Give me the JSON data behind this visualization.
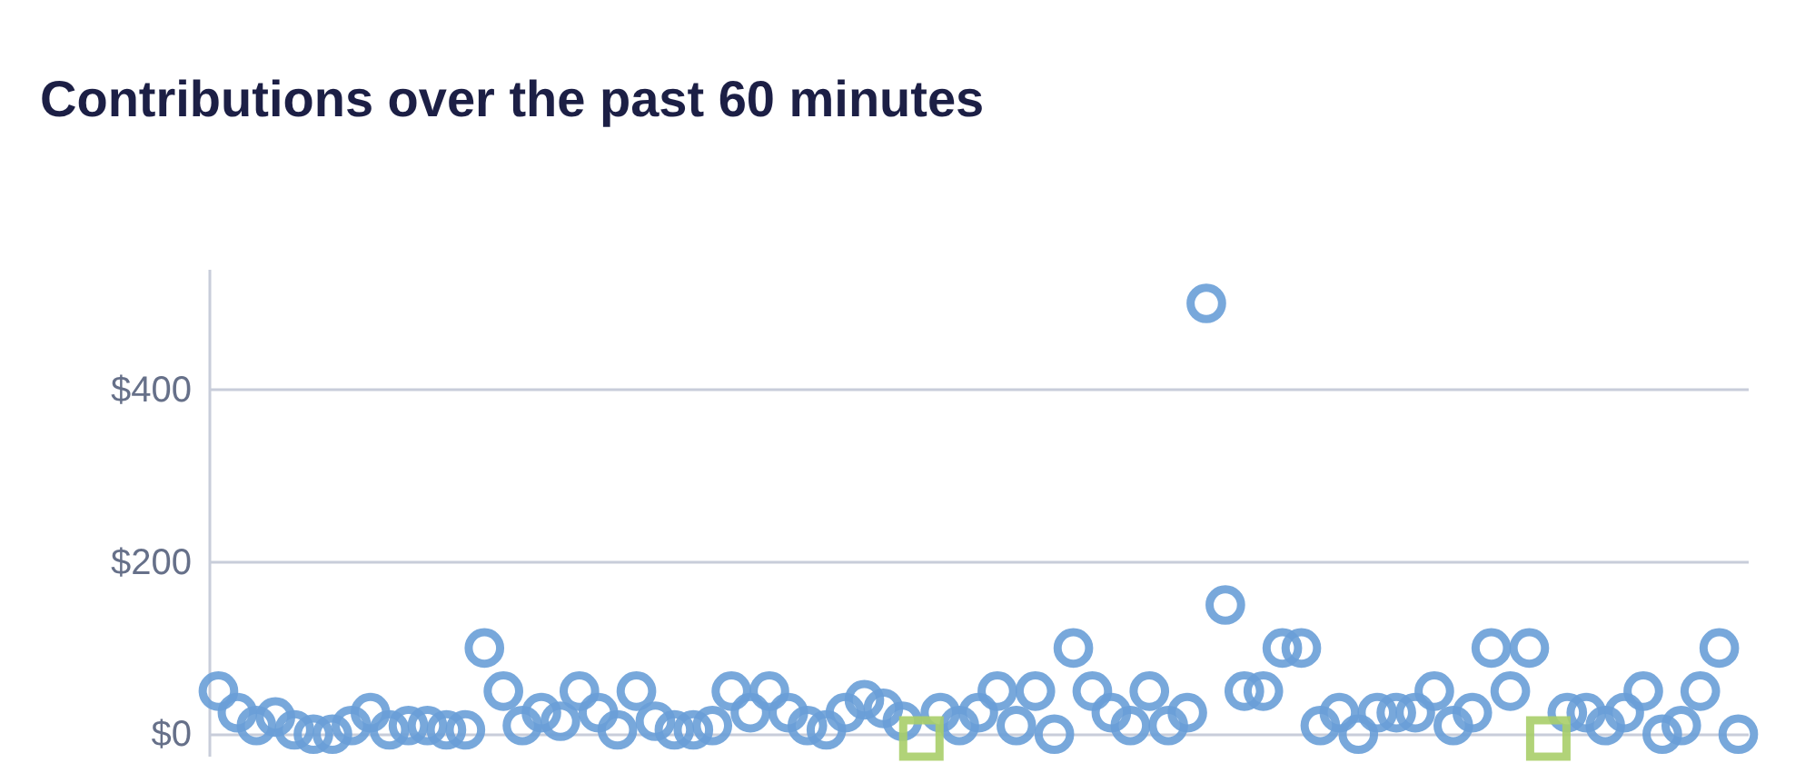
{
  "chart_data": {
    "type": "scatter",
    "title": "Contributions over the past 60 minutes",
    "categories": [
      null,
      null,
      null,
      null,
      null,
      null,
      null,
      null,
      null,
      null,
      null,
      null,
      null,
      null,
      null,
      null,
      null,
      null,
      null,
      null,
      null,
      null,
      null,
      null,
      null,
      null,
      null,
      null,
      null,
      null,
      null,
      null,
      null,
      null,
      null,
      null,
      null,
      null,
      null,
      null,
      null,
      null,
      null,
      null,
      null,
      null,
      null,
      null,
      null,
      null,
      null,
      null,
      null,
      null,
      null,
      null,
      null,
      null,
      null,
      null,
      null,
      null,
      null,
      null,
      null,
      null,
      null,
      null,
      null,
      null,
      null,
      null,
      null,
      null,
      null,
      null,
      null,
      null,
      null,
      null,
      null
    ],
    "series": [
      {
        "color": "#6a9fd8",
        "marker": "circle",
        "values": [
          50,
          25,
          10,
          20,
          5,
          0,
          0,
          10,
          25,
          5,
          10,
          10,
          5,
          5,
          100,
          50,
          10,
          25,
          15,
          50,
          25,
          5,
          50,
          15,
          5,
          5,
          10,
          50,
          25,
          50,
          25,
          10,
          5,
          25,
          40,
          30,
          15,
          null,
          25,
          10,
          25,
          50,
          10,
          50,
          0,
          100,
          50,
          25,
          10,
          50,
          10,
          25,
          500,
          150,
          50,
          50,
          100,
          100,
          10,
          25,
          0,
          25,
          25,
          25,
          50,
          10,
          25,
          100,
          50,
          100,
          null,
          25,
          25,
          10,
          25,
          50,
          0,
          10,
          50,
          100,
          0
        ]
      },
      {
        "color": "#a9cf6a",
        "marker": "square",
        "values": [
          null,
          null,
          null,
          null,
          null,
          null,
          null,
          null,
          null,
          null,
          null,
          null,
          null,
          null,
          null,
          null,
          null,
          null,
          null,
          null,
          null,
          null,
          null,
          null,
          null,
          null,
          null,
          null,
          null,
          null,
          null,
          null,
          null,
          null,
          null,
          null,
          null,
          -5,
          null,
          null,
          null,
          null,
          null,
          null,
          null,
          null,
          null,
          null,
          null,
          null,
          null,
          null,
          null,
          null,
          null,
          null,
          null,
          null,
          null,
          null,
          null,
          null,
          null,
          null,
          null,
          null,
          null,
          null,
          null,
          null,
          -5,
          null,
          null,
          null,
          null,
          null,
          null,
          null,
          null,
          null,
          null
        ]
      }
    ],
    "ylim": [
      -25,
      540
    ],
    "yticks": [
      {
        "value": 0,
        "label": "$0"
      },
      {
        "value": 200,
        "label": "$200"
      },
      {
        "value": 400,
        "label": "$400"
      }
    ],
    "grid": "y",
    "tick_labels": "y"
  }
}
